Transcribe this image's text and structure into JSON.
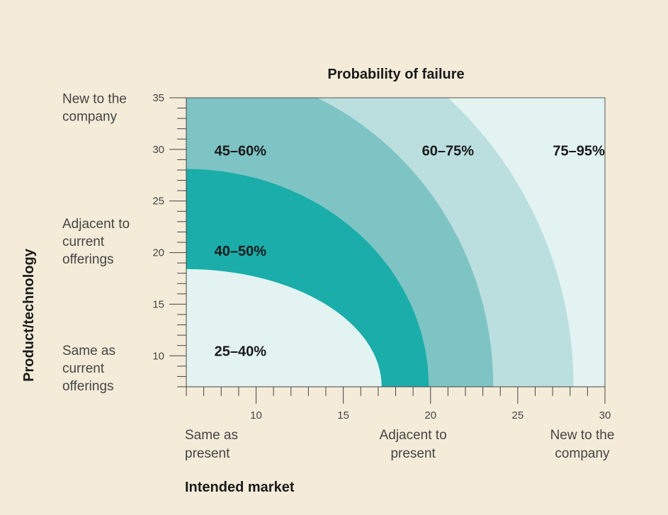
{
  "chart_data": {
    "type": "area",
    "title": "Probability of failure",
    "xlabel": "Intended market",
    "ylabel": "Product/technology",
    "xlim": [
      6,
      30
    ],
    "ylim": [
      7,
      35
    ],
    "x_ticks": [
      10,
      15,
      20,
      25,
      30
    ],
    "y_ticks": [
      10,
      15,
      20,
      25,
      30,
      35
    ],
    "x_category_labels": [
      {
        "at": 8.2,
        "text": "Same as present"
      },
      {
        "at": 19,
        "text": "Adjacent to present"
      },
      {
        "at": 28.7,
        "text": "New to the company"
      }
    ],
    "y_category_labels": [
      {
        "at": 34,
        "text": "New to the company"
      },
      {
        "at": 21,
        "text": "Adjacent to current offerings"
      },
      {
        "at": 8.7,
        "text": "Same as current offerings"
      }
    ],
    "series": [
      {
        "name": "25–40%",
        "color": "#e3f3f2",
        "boundary": {
          "x_at_bottom": 17.2,
          "y_at_left": 18.4
        },
        "label_pos": [
          9.1,
          10
        ]
      },
      {
        "name": "40–50%",
        "color": "#1aadaa",
        "boundary": {
          "x_at_bottom": 19.9,
          "y_at_left": 28.1
        },
        "label_pos": [
          9.1,
          19.7
        ]
      },
      {
        "name": "45–60%",
        "color": "#7ec4c4",
        "boundary": {
          "x_at_bottom": 23.6,
          "y_at_top": 13.5
        },
        "label_pos": [
          9.1,
          29.4
        ]
      },
      {
        "name": "60–75%",
        "color": "#bbdfdf",
        "boundary": {
          "x_at_bottom": 28.2,
          "y_at_top": 21.0
        },
        "label_pos": [
          21,
          29.4
        ]
      },
      {
        "name": "75–95%",
        "color": "#e3f3f2",
        "label_pos": [
          28.5,
          29.4
        ]
      }
    ]
  }
}
